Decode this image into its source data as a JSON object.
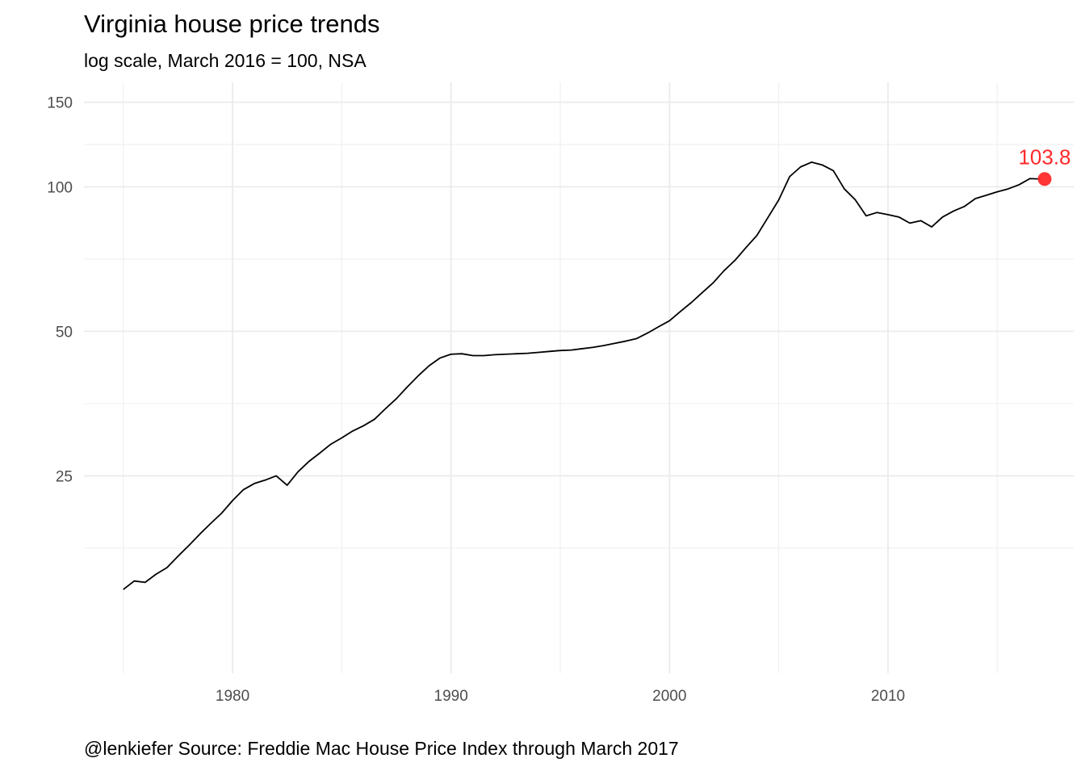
{
  "chart_data": {
    "type": "line",
    "title": "Virginia house price trends",
    "subtitle": "log scale, March 2016 = 100, NSA",
    "caption": "@lenkiefer Source: Freddie Mac House Price Index through March 2017",
    "xlabel": "",
    "ylabel": "",
    "y_scale": "log",
    "xlim": [
      1973.2,
      2018.5
    ],
    "ylim": [
      9.7,
      165
    ],
    "x_ticks": [
      1980,
      1990,
      2000,
      2010
    ],
    "y_ticks": [
      25,
      50,
      100,
      150
    ],
    "grid": true,
    "legend": "none",
    "line_color": "#000000",
    "highlight_color": "#ff2a2a",
    "series": [
      {
        "x": [
          1975.0,
          1975.5,
          1976.0,
          1976.5,
          1977.0,
          1977.5,
          1978.0,
          1978.5,
          1979.0,
          1979.5,
          1980.0,
          1980.5,
          1981.0,
          1981.5,
          1982.0,
          1982.5,
          1983.0,
          1983.5,
          1984.0,
          1984.5,
          1985.0,
          1985.5,
          1986.0,
          1986.5,
          1987.0,
          1987.5,
          1988.0,
          1988.5,
          1989.0,
          1989.5,
          1990.0,
          1990.5,
          1991.0,
          1991.5,
          1992.0,
          1992.5,
          1993.0,
          1993.5,
          1994.0,
          1994.5,
          1995.0,
          1995.5,
          1996.0,
          1996.5,
          1997.0,
          1997.5,
          1998.0,
          1998.5,
          1999.0,
          1999.5,
          2000.0,
          2000.5,
          2001.0,
          2001.5,
          2002.0,
          2002.5,
          2003.0,
          2003.5,
          2004.0,
          2004.5,
          2005.0,
          2005.5,
          2006.0,
          2006.5,
          2007.0,
          2007.5,
          2008.0,
          2008.5,
          2009.0,
          2009.5,
          2010.0,
          2010.5,
          2011.0,
          2011.5,
          2012.0,
          2012.5,
          2013.0,
          2013.5,
          2014.0,
          2014.5,
          2015.0,
          2015.5,
          2016.0,
          2016.5,
          2017.0
        ],
        "values": [
          14.5,
          15.1,
          15.0,
          15.6,
          16.1,
          17.0,
          17.9,
          18.9,
          19.9,
          20.9,
          22.2,
          23.4,
          24.1,
          24.5,
          25.0,
          23.9,
          25.5,
          26.8,
          27.9,
          29.1,
          30.0,
          31.0,
          31.8,
          32.8,
          34.5,
          36.2,
          38.3,
          40.4,
          42.4,
          44.0,
          44.8,
          44.9,
          44.5,
          44.5,
          44.7,
          44.8,
          44.9,
          45.0,
          45.2,
          45.4,
          45.6,
          45.7,
          46.0,
          46.3,
          46.7,
          47.2,
          47.7,
          48.3,
          49.6,
          51.1,
          52.6,
          55.0,
          57.4,
          60.2,
          63.1,
          66.9,
          70.3,
          74.7,
          79.2,
          86.2,
          93.9,
          105.0,
          110.0,
          112.5,
          111.0,
          108.0,
          99.0,
          94.0,
          87.0,
          88.4,
          87.5,
          86.5,
          84.0,
          85.0,
          82.5,
          86.5,
          89.0,
          91.0,
          94.5,
          96.0,
          97.6,
          99.0,
          101.0,
          104.0,
          103.8
        ]
      }
    ],
    "highlight": {
      "x": 2017.17,
      "value": 103.8,
      "label": "103.8"
    }
  }
}
